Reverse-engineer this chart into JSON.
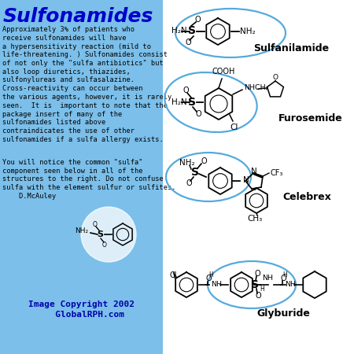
{
  "title": "Sulfonamides",
  "title_color": "#0000CC",
  "bg_left": "#7BBFEA",
  "bg_right": "#FFFFFF",
  "body1": "Approximately 3% of patients who\nreceive sulfonamides will have\na hypersensitivity reaction (mild to\nlife-threatening. ) Sulfonamides consist\nof not only the \"sulfa antibiotics\" but\nalso loop diuretics, thiazides,\nsulfonylureas and sulfasalazine.\nCross-reactivity can occur between\nthe various agents, however, it is rarely\nseen.  It is  important to note that the\npackage insert of many of the\nsulfonamides listed above\ncontraindicates the use of other\nsulfonamides if a sulfa allergy exists.",
  "body2": "You will notice the common \"sulfa\"\ncomponent seen below in all of the\nstructures to the right. Do not confuse\nsulfa with the element sulfur or sulfites.\n    D.McAuley",
  "copyright": "Image Copyright 2002\n   GlobalRPH.com",
  "ellipse_color": "#55AADD",
  "drug_label_fontsize": 9,
  "body_fontsize": 6.2,
  "title_fontsize": 18
}
